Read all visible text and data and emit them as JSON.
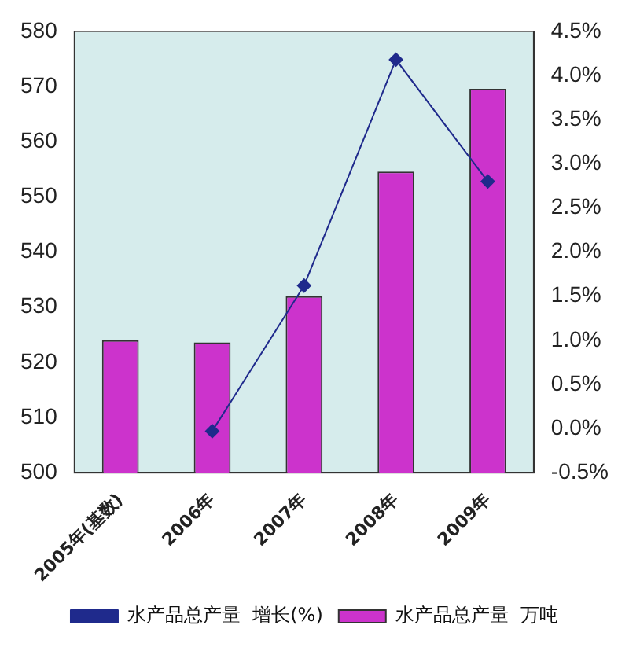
{
  "chart_data": {
    "type": "bar",
    "categories": [
      "2005年(基数)",
      "2006年",
      "2007年",
      "2008年",
      "2009年"
    ],
    "series": [
      {
        "name": "水产品总产量  万吨",
        "color": "#cc33cc",
        "values": [
          524,
          523.6,
          532,
          554.6,
          569.6
        ]
      },
      {
        "name": "水产品总产量  增长(%)",
        "type": "line",
        "axis": "y2",
        "color": "#1f2a8c",
        "values": [
          null,
          -0.03,
          1.62,
          4.18,
          2.8
        ]
      }
    ],
    "ylim": [
      500,
      580
    ],
    "yticks": [
      500,
      510,
      520,
      530,
      540,
      550,
      560,
      570,
      580
    ],
    "y2lim": [
      -0.5,
      4.5
    ],
    "y2ticks": [
      {
        "value": -0.5,
        "label": "-0.5%"
      },
      {
        "value": 0,
        "label": "0.0%"
      },
      {
        "value": 0.5,
        "label": "0.5%"
      },
      {
        "value": 1,
        "label": "1.0%"
      },
      {
        "value": 1.5,
        "label": "1.5%"
      },
      {
        "value": 2,
        "label": "2.0%"
      },
      {
        "value": 2.5,
        "label": "2.5%"
      },
      {
        "value": 3,
        "label": "3.0%"
      },
      {
        "value": 3.5,
        "label": "3.5%"
      },
      {
        "value": 4,
        "label": "4.0%"
      },
      {
        "value": 4.5,
        "label": "4.5%"
      }
    ],
    "grid": false,
    "legend": "bottom",
    "marker": "diamond"
  }
}
